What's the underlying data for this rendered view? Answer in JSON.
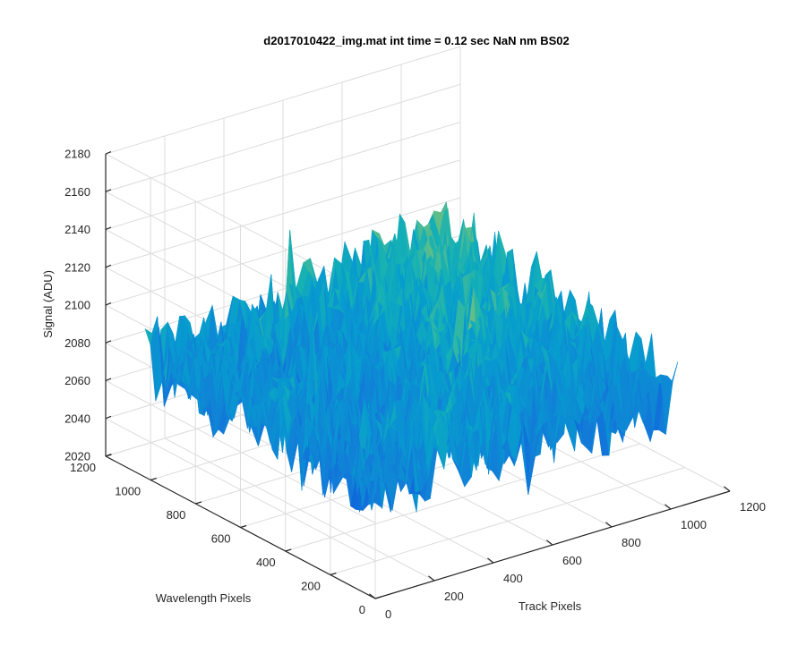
{
  "chart_data": {
    "type": "surface",
    "title": "d2017010422_img.mat int time = 0.12 sec  NaN nm BS02",
    "xlabel": "Track Pixels",
    "ylabel": "Wavelength Pixels",
    "zlabel": "Signal (ADU)",
    "xlim": [
      0,
      1200
    ],
    "ylim": [
      0,
      1200
    ],
    "zlim": [
      2020,
      2180
    ],
    "x_ticks": [
      "0",
      "200",
      "400",
      "600",
      "800",
      "1000",
      "1200"
    ],
    "y_ticks": [
      "0",
      "200",
      "400",
      "600",
      "800",
      "1000",
      "1200"
    ],
    "z_ticks": [
      "2020",
      "2040",
      "2060",
      "2080",
      "2100",
      "2120",
      "2140",
      "2160",
      "2180"
    ],
    "grid": true,
    "colormap": "parula",
    "data_extent": {
      "x": [
        0,
        1024
      ],
      "y": [
        0,
        1024
      ]
    },
    "signal": {
      "mean": 2085,
      "min": 2030,
      "max": 2170
    }
  }
}
